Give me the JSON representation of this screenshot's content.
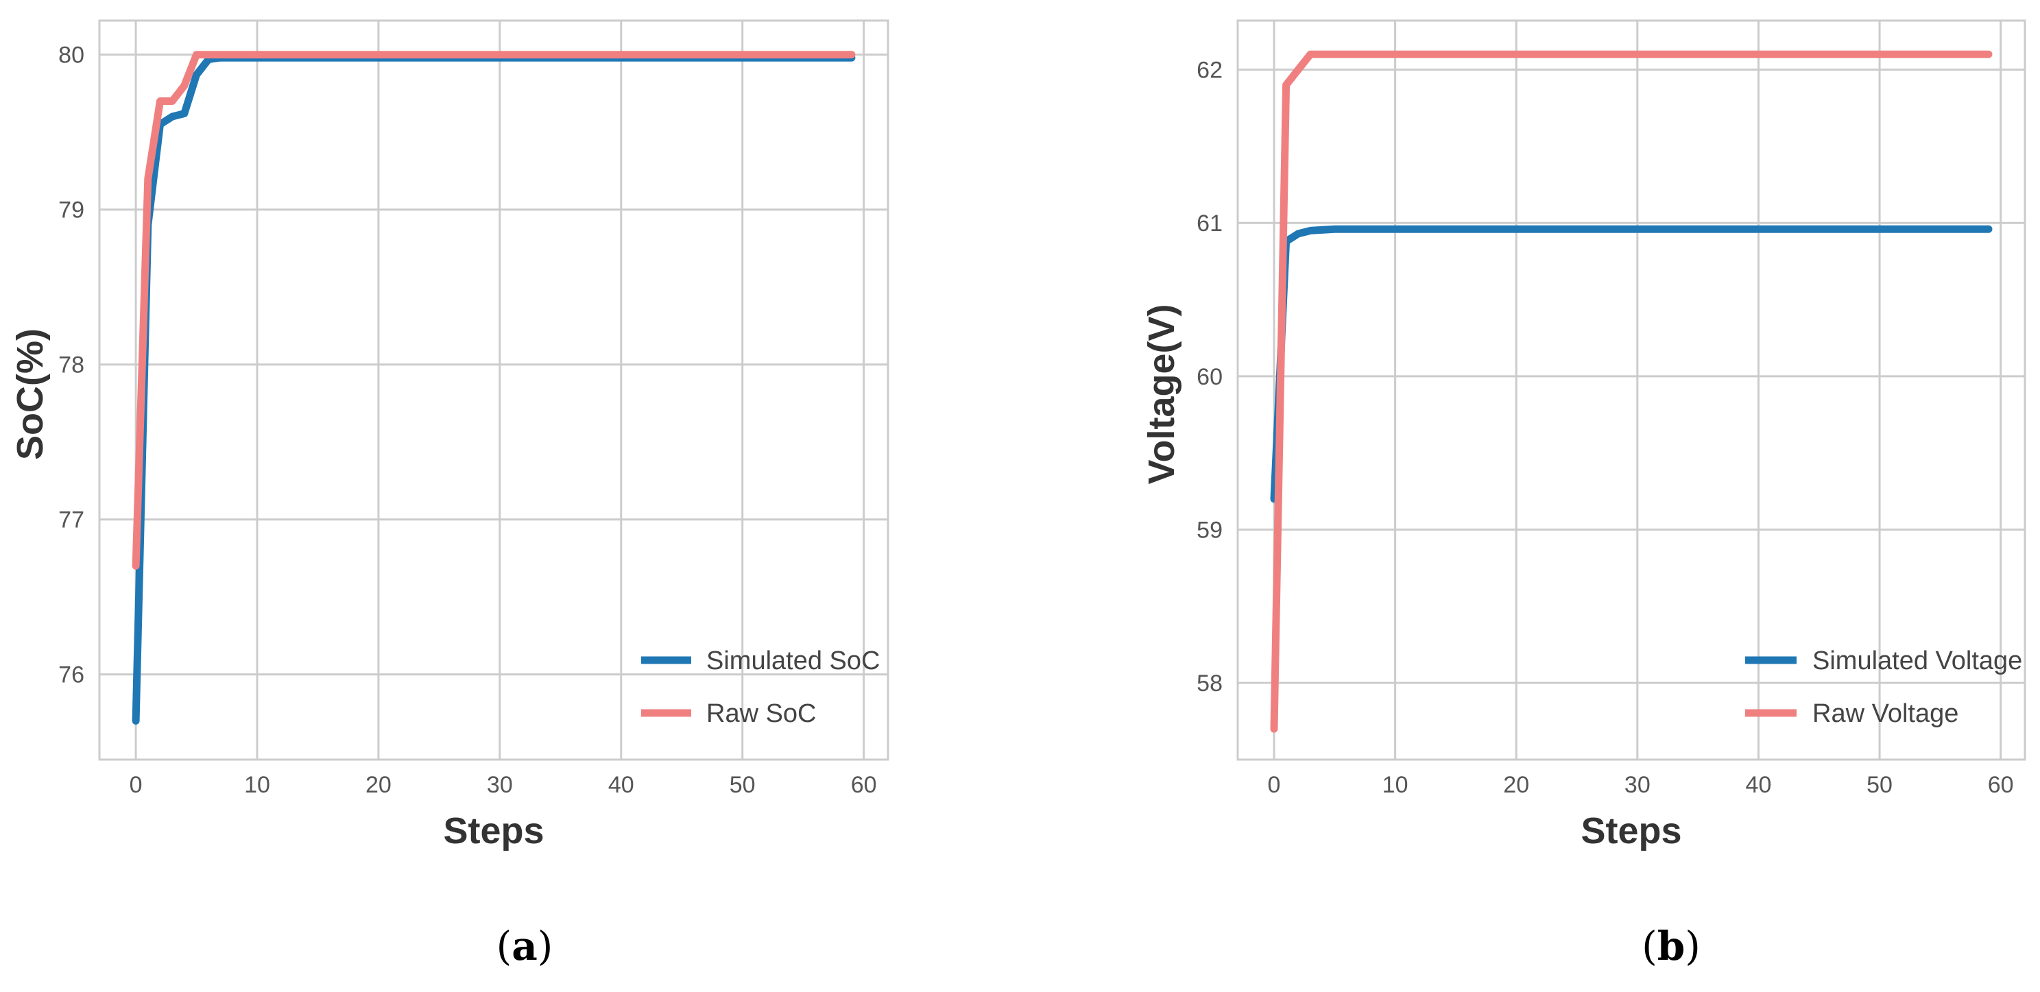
{
  "chart_data": [
    {
      "type": "line",
      "panel": "a",
      "caption": "(a)",
      "caption_letter": "a",
      "xlabel": "Steps",
      "ylabel": "SoC(%)",
      "xlim": [
        -3,
        62
      ],
      "ylim": [
        75.45,
        80.22
      ],
      "xticks": [
        0,
        10,
        20,
        30,
        40,
        50,
        60
      ],
      "yticks": [
        76,
        77,
        78,
        79,
        80
      ],
      "grid": true,
      "legend_position": "lower-right",
      "series": [
        {
          "name": "Simulated SoC",
          "color": "#1f77b4",
          "x": [
            0,
            1,
            2,
            3,
            4,
            5,
            6,
            7,
            10,
            20,
            30,
            40,
            50,
            59
          ],
          "y": [
            75.7,
            78.9,
            79.55,
            79.6,
            79.62,
            79.87,
            79.97,
            79.98,
            79.98,
            79.98,
            79.98,
            79.98,
            79.98,
            79.98
          ]
        },
        {
          "name": "Raw SoC",
          "color": "#f08080",
          "x": [
            0,
            1,
            2,
            3,
            4,
            5,
            10,
            20,
            30,
            40,
            50,
            59
          ],
          "y": [
            76.7,
            79.2,
            79.7,
            79.7,
            79.8,
            80.0,
            80.0,
            80.0,
            80.0,
            80.0,
            80.0,
            80.0
          ]
        }
      ]
    },
    {
      "type": "line",
      "panel": "b",
      "caption": "(b)",
      "caption_letter": "b",
      "xlabel": "Steps",
      "ylabel": "Voltage(V)",
      "xlim": [
        -3,
        62
      ],
      "ylim": [
        57.5,
        62.32
      ],
      "xticks": [
        0,
        10,
        20,
        30,
        40,
        50,
        60
      ],
      "yticks": [
        58,
        59,
        60,
        61,
        62
      ],
      "grid": true,
      "legend_position": "lower-right",
      "series": [
        {
          "name": "Simulated Voltage",
          "color": "#1f77b4",
          "x": [
            0,
            1,
            2,
            3,
            5,
            10,
            20,
            30,
            40,
            50,
            59
          ],
          "y": [
            59.2,
            60.88,
            60.93,
            60.95,
            60.96,
            60.96,
            60.96,
            60.96,
            60.96,
            60.96,
            60.96
          ]
        },
        {
          "name": "Raw Voltage",
          "color": "#f08080",
          "x": [
            0,
            1,
            2,
            3,
            10,
            20,
            30,
            40,
            50,
            59
          ],
          "y": [
            57.7,
            61.9,
            62.0,
            62.1,
            62.1,
            62.1,
            62.1,
            62.1,
            62.1,
            62.1
          ]
        }
      ]
    }
  ]
}
